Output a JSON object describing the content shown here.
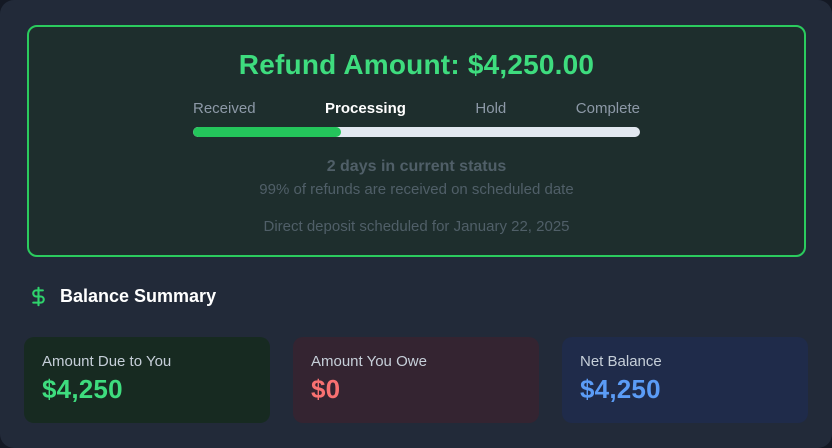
{
  "refund_card": {
    "title": "Refund Amount: $4,250.00",
    "title_color": "#3edc7e",
    "border_color": "#2bcb5e",
    "steps": [
      {
        "label": "Received",
        "active": false
      },
      {
        "label": "Processing",
        "active": true
      },
      {
        "label": "Hold",
        "active": false
      },
      {
        "label": "Complete",
        "active": false
      }
    ],
    "progress_percent": 33,
    "progress_color": "#24c55b",
    "status_primary": "2 days in current status",
    "status_secondary": "99% of refunds are received on scheduled date",
    "deposit_note": "Direct deposit scheduled for January 22, 2025"
  },
  "balance_summary": {
    "icon": "dollar-sign-icon",
    "icon_color": "#2fd36c",
    "title": "Balance Summary",
    "cards": [
      {
        "label": "Amount Due to You",
        "value": "$4,250",
        "value_color": "#3edc7e",
        "bg_color": "#172a21"
      },
      {
        "label": "Amount You Owe",
        "value": "$0",
        "value_color": "#f87171",
        "bg_color": "#342431"
      },
      {
        "label": "Net Balance",
        "value": "$4,250",
        "value_color": "#5b9cf6",
        "bg_color": "#1f2b4a"
      }
    ]
  }
}
